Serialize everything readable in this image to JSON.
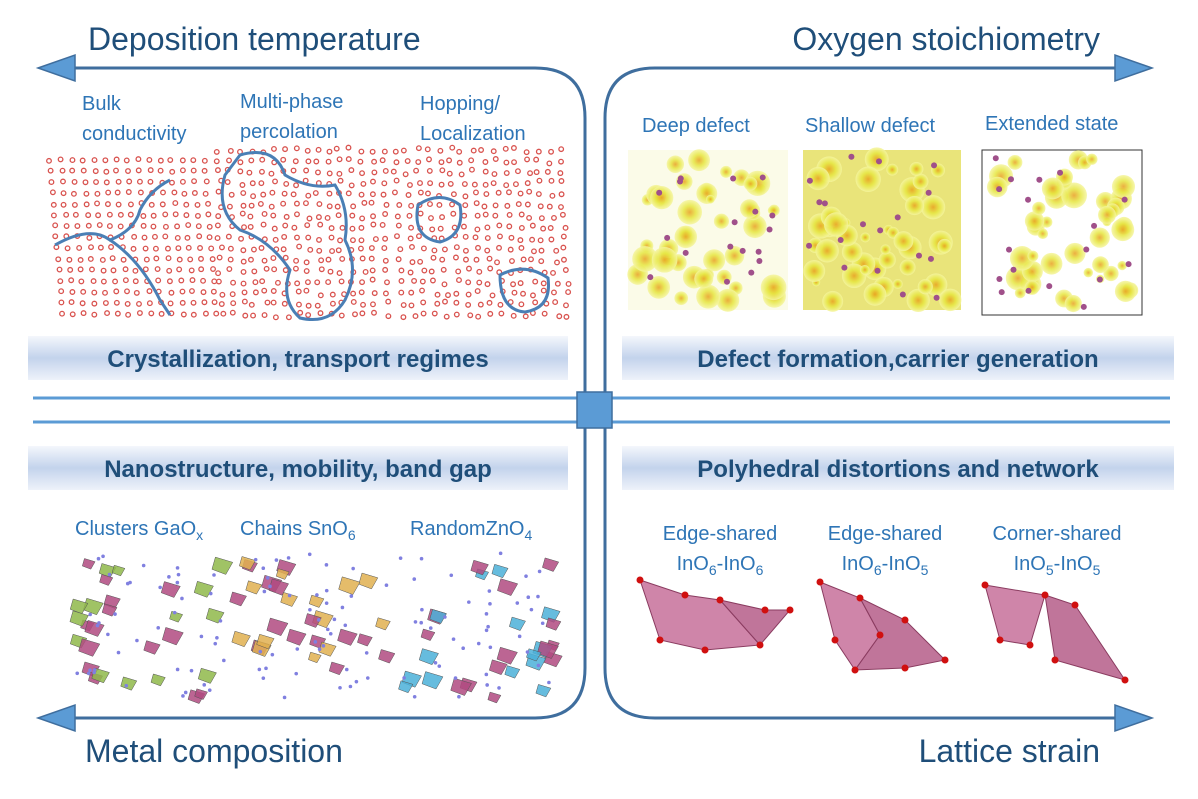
{
  "axes": {
    "top_left": "Deposition temperature",
    "top_right": "Oxygen stoichiometry",
    "bottom_left": "Metal composition",
    "bottom_right": "Lattice strain"
  },
  "quadrants": {
    "top_left": {
      "banner": "Crystallization, transport regimes",
      "panels": [
        {
          "line1": "Bulk",
          "line2": "conductivity"
        },
        {
          "line1": "Multi-phase",
          "line2": "percolation"
        },
        {
          "line1": "Hopping/",
          "line2": "Localization"
        }
      ]
    },
    "top_right": {
      "banner": "Defect formation,carrier generation",
      "panels": [
        "Deep defect",
        "Shallow defect",
        "Extended state"
      ]
    },
    "bottom_left": {
      "banner": "Nanostructure, mobility, band gap",
      "panels": [
        {
          "text": "Clusters GaO",
          "sub": "x"
        },
        {
          "text": "Chains SnO",
          "sub": "6"
        },
        {
          "text": "RandomZnO",
          "sub": "4"
        }
      ]
    },
    "bottom_right": {
      "banner": "Polyhedral distortions and network",
      "panels": [
        {
          "line1": "Edge-shared",
          "a": "InO",
          "asub": "6",
          "b": "-InO",
          "bsub": "6"
        },
        {
          "line1": "Edge-shared",
          "a": "InO",
          "asub": "6",
          "b": "-InO",
          "bsub": "5"
        },
        {
          "line1": "Corner-shared",
          "a": "InO",
          "asub": "5",
          "b": "-InO",
          "bsub": "5"
        }
      ]
    }
  },
  "colors": {
    "line": "#4a86c5",
    "frame": "#3f6e9e",
    "text_dark": "#1f4e79",
    "text_label": "#2e75b6",
    "atom": "#d9534f"
  }
}
